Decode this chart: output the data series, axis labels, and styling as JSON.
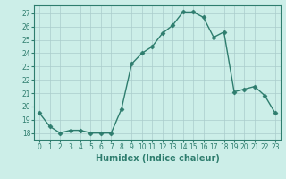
{
  "x": [
    0,
    1,
    2,
    3,
    4,
    5,
    6,
    7,
    8,
    9,
    10,
    11,
    12,
    13,
    14,
    15,
    16,
    17,
    18,
    19,
    20,
    21,
    22,
    23
  ],
  "y": [
    19.5,
    18.5,
    18.0,
    18.2,
    18.2,
    18.0,
    18.0,
    18.0,
    19.8,
    23.2,
    24.0,
    24.5,
    25.5,
    26.1,
    27.1,
    27.1,
    26.7,
    25.2,
    25.6,
    21.1,
    21.3,
    21.5,
    20.8,
    19.5
  ],
  "line_color": "#2e7d6e",
  "marker": "D",
  "marker_size": 2.5,
  "bg_color": "#cceee8",
  "grid_color": "#aacccc",
  "xlabel": "Humidex (Indice chaleur)",
  "ylim": [
    17.5,
    27.6
  ],
  "xlim": [
    -0.5,
    23.5
  ],
  "yticks": [
    18,
    19,
    20,
    21,
    22,
    23,
    24,
    25,
    26,
    27
  ],
  "xticks": [
    0,
    1,
    2,
    3,
    4,
    5,
    6,
    7,
    8,
    9,
    10,
    11,
    12,
    13,
    14,
    15,
    16,
    17,
    18,
    19,
    20,
    21,
    22,
    23
  ],
  "font_color": "#2e7d6e",
  "tick_fontsize": 5.5,
  "xlabel_fontsize": 7,
  "linewidth": 1.0
}
